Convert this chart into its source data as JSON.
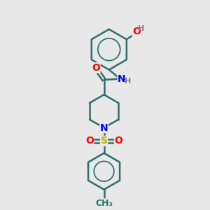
{
  "bg_color": "#e8e8e8",
  "bond_color": "#2d6e6e",
  "atom_colors": {
    "O": "#ff0000",
    "N": "#0000ff",
    "S": "#ccaa00",
    "C": "#2d6e6e",
    "H": "#808080"
  },
  "bond_width": 1.8,
  "dbo": 0.07,
  "font_size": 9,
  "fig_width": 3.0,
  "fig_height": 3.0,
  "dpi": 100
}
